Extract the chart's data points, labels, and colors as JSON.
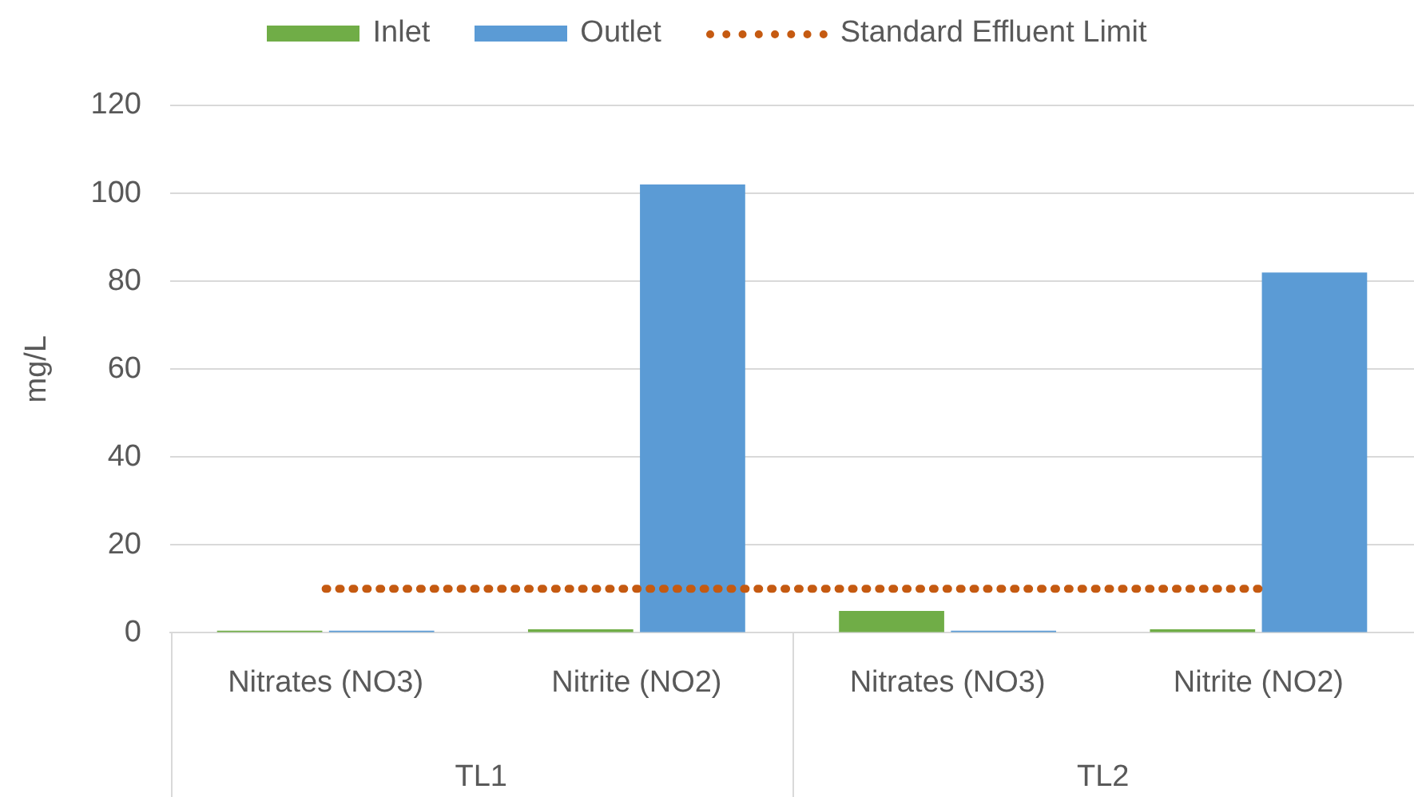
{
  "chart_data": {
    "type": "bar",
    "ylabel": "mg/L",
    "categories": [
      "Nitrates (NO3)",
      "Nitrite (NO2)",
      "Nitrates (NO3)",
      "Nitrite (NO2)"
    ],
    "annotations": [
      "TL1",
      "TL2"
    ],
    "series": [
      {
        "name": "Inlet",
        "color": "#70ad47",
        "values": [
          0.5,
          0.8,
          5,
          0.8
        ]
      },
      {
        "name": "Outlet",
        "color": "#5b9bd5",
        "values": [
          0.5,
          102,
          0.5,
          82
        ]
      },
      {
        "name": "Standard Effluent Limit",
        "type": "line",
        "color": "#c55a11",
        "line_style": "dotted",
        "values": [
          10,
          10,
          10,
          10
        ]
      }
    ],
    "ylim": [
      0,
      120
    ],
    "yticks": [
      0,
      20,
      40,
      60,
      80,
      100,
      120
    ],
    "grid": "y",
    "legend": "top"
  }
}
